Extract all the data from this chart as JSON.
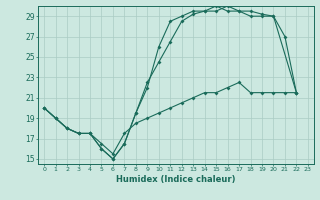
{
  "xlabel": "Humidex (Indice chaleur)",
  "bg_color": "#cce8e0",
  "grid_color": "#aaccc4",
  "line_color": "#1a6b5a",
  "xlim": [
    -0.5,
    23.5
  ],
  "ylim": [
    14.5,
    30.0
  ],
  "xticks": [
    0,
    1,
    2,
    3,
    4,
    5,
    6,
    7,
    8,
    9,
    10,
    11,
    12,
    13,
    14,
    15,
    16,
    17,
    18,
    19,
    20,
    21,
    22,
    23
  ],
  "yticks": [
    15,
    17,
    19,
    21,
    23,
    25,
    27,
    29
  ],
  "line1_x": [
    0,
    1,
    2,
    3,
    4,
    5,
    6,
    7,
    8,
    9,
    10,
    11,
    12,
    13,
    14,
    15,
    16,
    17,
    18,
    19,
    20,
    21,
    22
  ],
  "line1_y": [
    20.0,
    19.0,
    18.0,
    17.5,
    17.5,
    16.0,
    15.0,
    16.5,
    19.5,
    22.5,
    24.5,
    26.5,
    28.5,
    29.2,
    29.5,
    29.5,
    30.0,
    29.5,
    29.5,
    29.2,
    29.0,
    27.0,
    21.5
  ],
  "line2_x": [
    0,
    1,
    2,
    3,
    4,
    5,
    6,
    7,
    8,
    9,
    10,
    11,
    12,
    13,
    14,
    15,
    16,
    17,
    18,
    19,
    20,
    22
  ],
  "line2_y": [
    20.0,
    19.0,
    18.0,
    17.5,
    17.5,
    16.0,
    15.0,
    16.5,
    19.5,
    22.0,
    26.0,
    28.5,
    29.0,
    29.5,
    29.5,
    30.0,
    29.5,
    29.5,
    29.0,
    29.0,
    29.0,
    21.5
  ],
  "line3_x": [
    0,
    1,
    2,
    3,
    4,
    5,
    6,
    7,
    8,
    9,
    10,
    11,
    12,
    13,
    14,
    15,
    16,
    17,
    18,
    19,
    20,
    21,
    22
  ],
  "line3_y": [
    20.0,
    19.0,
    18.0,
    17.5,
    17.5,
    16.5,
    15.5,
    17.5,
    18.5,
    19.0,
    19.5,
    20.0,
    20.5,
    21.0,
    21.5,
    21.5,
    22.0,
    22.5,
    21.5,
    21.5,
    21.5,
    21.5,
    21.5
  ]
}
